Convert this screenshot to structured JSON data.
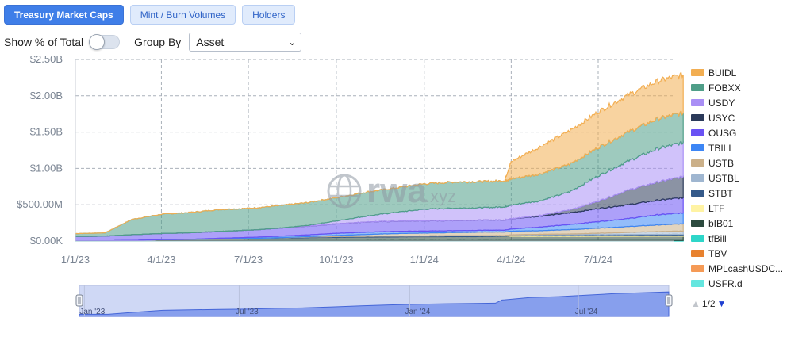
{
  "tabs": [
    {
      "label": "Treasury Market Caps",
      "active": true
    },
    {
      "label": "Mint / Burn Volumes",
      "active": false
    },
    {
      "label": "Holders",
      "active": false
    }
  ],
  "controls": {
    "show_pct_label": "Show % of Total",
    "show_pct_on": false,
    "group_by_label": "Group By",
    "group_by_value": "Asset"
  },
  "watermark": {
    "main": "rwa",
    "suffix": ".xyz"
  },
  "pager": {
    "text": "1/2"
  },
  "chart_data": {
    "type": "area",
    "stacked": true,
    "x_dates": [
      "2023-01-01",
      "2023-02-01",
      "2023-03-01",
      "2023-04-01",
      "2023-05-01",
      "2023-06-01",
      "2023-07-01",
      "2023-08-01",
      "2023-09-01",
      "2023-10-01",
      "2023-11-01",
      "2023-12-01",
      "2024-01-01",
      "2024-02-01",
      "2024-03-01",
      "2024-03-25",
      "2024-04-01",
      "2024-05-01",
      "2024-06-01",
      "2024-07-01",
      "2024-08-01",
      "2024-09-01",
      "2024-09-28"
    ],
    "x_ticks": [
      {
        "label": "1/1/23",
        "date": "2023-01-01"
      },
      {
        "label": "4/1/23",
        "date": "2023-04-01"
      },
      {
        "label": "7/1/23",
        "date": "2023-07-01"
      },
      {
        "label": "10/1/23",
        "date": "2023-10-01"
      },
      {
        "label": "1/1/24",
        "date": "2024-01-01"
      },
      {
        "label": "4/1/24",
        "date": "2024-04-01"
      },
      {
        "label": "7/1/24",
        "date": "2024-07-01"
      }
    ],
    "y_ticks": [
      {
        "label": "$0.00K",
        "value": 0
      },
      {
        "label": "$500.00M",
        "value": 500
      },
      {
        "label": "$1.00B",
        "value": 1000
      },
      {
        "label": "$1.50B",
        "value": 1500
      },
      {
        "label": "$2.00B",
        "value": 2000
      },
      {
        "label": "$2.50B",
        "value": 2500
      }
    ],
    "y_unit": "USD millions",
    "ylim": [
      0,
      2500
    ],
    "grid": true,
    "legend_position": "right",
    "series": [
      {
        "name": "tfBill",
        "color": "#2ed6c9",
        "values": [
          3,
          3,
          3,
          4,
          4,
          4,
          5,
          5,
          5,
          5,
          6,
          6,
          6,
          6,
          6,
          6,
          6,
          7,
          7,
          7,
          7,
          8,
          8
        ]
      },
      {
        "name": "bIB01",
        "color": "#2c4a3e",
        "values": [
          0,
          0,
          5,
          15,
          20,
          25,
          30,
          35,
          40,
          45,
          48,
          50,
          52,
          55,
          55,
          55,
          55,
          56,
          56,
          57,
          57,
          58,
          58
        ]
      },
      {
        "name": "LTF",
        "color": "#fff3a3",
        "values": [
          0,
          0,
          0,
          0,
          0,
          0,
          0,
          0,
          0,
          0,
          0,
          0,
          0,
          0,
          0,
          3,
          8,
          10,
          12,
          12,
          13,
          13,
          14
        ]
      },
      {
        "name": "STBT",
        "color": "#355a8a",
        "values": [
          0,
          0,
          0,
          0,
          0,
          0,
          0,
          5,
          10,
          12,
          12,
          12,
          12,
          12,
          12,
          12,
          12,
          12,
          12,
          12,
          12,
          12,
          12
        ]
      },
      {
        "name": "USTBL",
        "color": "#9fb6d0",
        "values": [
          0,
          0,
          0,
          0,
          0,
          0,
          0,
          0,
          0,
          0,
          0,
          0,
          0,
          0,
          0,
          0,
          5,
          8,
          10,
          20,
          30,
          40,
          45
        ]
      },
      {
        "name": "USTB",
        "color": "#cbb089",
        "values": [
          0,
          0,
          0,
          0,
          0,
          0,
          0,
          0,
          5,
          15,
          25,
          35,
          40,
          45,
          50,
          50,
          50,
          50,
          60,
          70,
          80,
          90,
          100
        ]
      },
      {
        "name": "TBILL",
        "color": "#3d86f5",
        "values": [
          0,
          0,
          0,
          0,
          0,
          10,
          15,
          20,
          25,
          30,
          32,
          30,
          28,
          25,
          25,
          25,
          30,
          50,
          70,
          90,
          110,
          140,
          150
        ]
      },
      {
        "name": "OUSG",
        "color": "#6a52f4",
        "values": [
          60,
          65,
          80,
          85,
          90,
          95,
          100,
          110,
          120,
          130,
          140,
          140,
          140,
          140,
          140,
          140,
          140,
          150,
          160,
          180,
          190,
          200,
          210
        ]
      },
      {
        "name": "USYC",
        "color": "#2b3a5a",
        "values": [
          0,
          0,
          0,
          0,
          0,
          0,
          0,
          0,
          0,
          0,
          0,
          0,
          0,
          0,
          0,
          0,
          0,
          10,
          40,
          100,
          200,
          250,
          290
        ]
      },
      {
        "name": "USDY",
        "color": "#a98ff5",
        "values": [
          0,
          0,
          0,
          0,
          0,
          0,
          0,
          0,
          10,
          40,
          80,
          120,
          160,
          170,
          170,
          180,
          190,
          200,
          250,
          350,
          400,
          460,
          470
        ]
      },
      {
        "name": "FOBXX",
        "color": "#4f9e88",
        "values": [
          40,
          45,
          210,
          265,
          280,
          300,
          300,
          310,
          315,
          320,
          330,
          335,
          350,
          360,
          360,
          360,
          360,
          370,
          380,
          390,
          400,
          410,
          410
        ]
      },
      {
        "name": "BUIDL",
        "color": "#f2ae52",
        "values": [
          0,
          0,
          0,
          0,
          0,
          0,
          0,
          0,
          0,
          0,
          0,
          0,
          0,
          0,
          0,
          0,
          240,
          375,
          460,
          490,
          510,
          520,
          525
        ]
      }
    ],
    "legend": [
      {
        "name": "BUIDL",
        "color": "#f2ae52"
      },
      {
        "name": "FOBXX",
        "color": "#4f9e88"
      },
      {
        "name": "USDY",
        "color": "#a98ff5"
      },
      {
        "name": "USYC",
        "color": "#2b3a5a"
      },
      {
        "name": "OUSG",
        "color": "#6a52f4"
      },
      {
        "name": "TBILL",
        "color": "#3d86f5"
      },
      {
        "name": "USTB",
        "color": "#cbb089"
      },
      {
        "name": "USTBL",
        "color": "#9fb6d0"
      },
      {
        "name": "STBT",
        "color": "#355a8a"
      },
      {
        "name": "LTF",
        "color": "#fff3a3"
      },
      {
        "name": "bIB01",
        "color": "#2c4a3e"
      },
      {
        "name": "tfBill",
        "color": "#2ed6c9"
      },
      {
        "name": "TBV",
        "color": "#e8822f"
      },
      {
        "name": "MPLcashUSDC...",
        "color": "#f59a56"
      },
      {
        "name": "USFR.d",
        "color": "#64e6df"
      }
    ],
    "navigator": {
      "labels": [
        {
          "label": "Jan '23",
          "date": "2023-01-15"
        },
        {
          "label": "Jul '23",
          "date": "2023-07-01"
        },
        {
          "label": "Jan '24",
          "date": "2024-01-01"
        },
        {
          "label": "Jul '24",
          "date": "2024-07-01"
        }
      ]
    }
  }
}
